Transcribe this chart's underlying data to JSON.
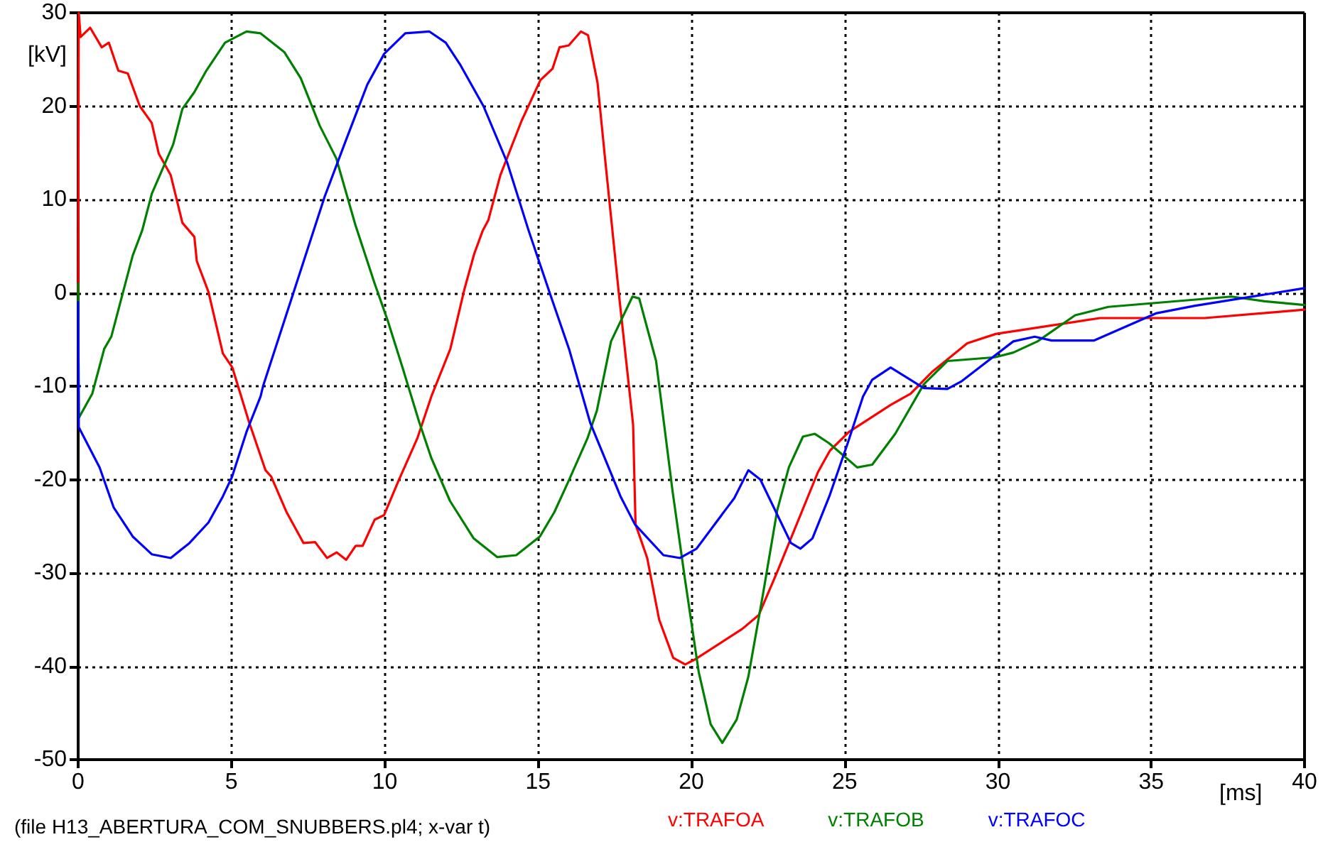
{
  "chart_data": {
    "type": "line",
    "xlabel": "[ms]",
    "ylabel": "[kV]",
    "xlim": [
      0,
      40
    ],
    "xticks": [
      0,
      5,
      10,
      15,
      20,
      25,
      30,
      35,
      40
    ],
    "ylim": [
      -50,
      30
    ],
    "yticks": [
      -50,
      -40,
      -30,
      -20,
      -10,
      0,
      10,
      20,
      30
    ],
    "grid": true,
    "legend": "bottom",
    "marker": "none",
    "line_style": "solid",
    "annotations": [
      "(file H13_ABERTURA_COM_SNUBBERS.pl4; x-var t)"
    ],
    "series": [
      {
        "name": "v:TRAFOA",
        "color": "#ff0000",
        "x": [
          0,
          0.02,
          0.08,
          0.39,
          0.77,
          1.0,
          1.31,
          1.62,
          2.01,
          2.4,
          2.63,
          3.02,
          3.4,
          3.79,
          3.87,
          4.25,
          4.72,
          5.03,
          5.57,
          6.11,
          6.3,
          6.8,
          7.35,
          7.73,
          8.12,
          8.43,
          8.74,
          9.05,
          9.28,
          9.67,
          9.98,
          10.44,
          11.06,
          11.52,
          12.14,
          12.6,
          12.92,
          13.2,
          13.38,
          13.77,
          14.46,
          15.08,
          15.47,
          15.7,
          16.0,
          16.4,
          16.63,
          16.94,
          17.17,
          17.63,
          18.1,
          18.18,
          18.56,
          18.95,
          19.41,
          19.8,
          20.1,
          21.66,
          22.2,
          22.8,
          24.13,
          24.52,
          25.14,
          26.5,
          27.15,
          27.84,
          29.0,
          29.93,
          33.33,
          36.74,
          40
        ],
        "values": [
          0,
          30,
          27.4,
          28.4,
          26.3,
          26.8,
          23.8,
          23.5,
          20,
          18.2,
          14.9,
          12.6,
          7.5,
          6,
          3.4,
          0.1,
          -6.5,
          -8,
          -13.8,
          -19,
          -19.7,
          -23.5,
          -26.8,
          -26.7,
          -28.4,
          -27.8,
          -28.6,
          -27.1,
          -27.1,
          -24.3,
          -23.8,
          -20.2,
          -15.6,
          -11.1,
          -6,
          0.4,
          4.2,
          6.7,
          7.8,
          12.6,
          18.4,
          22.8,
          24,
          26.3,
          26.5,
          28,
          27.6,
          22.5,
          14.9,
          0.1,
          -14.1,
          -24.8,
          -28.4,
          -35,
          -39.1,
          -39.8,
          -39.3,
          -36,
          -34.5,
          -29.9,
          -19.2,
          -16.9,
          -14.9,
          -12,
          -10.8,
          -8.5,
          -5.4,
          -4.4,
          -2.7,
          -2.7,
          -1.8
        ]
      },
      {
        "name": "v:TRAFOB",
        "color": "#008000",
        "x": [
          0,
          0.02,
          0.46,
          0.85,
          1.08,
          1.78,
          2.09,
          2.4,
          3.1,
          3.4,
          3.79,
          4.18,
          4.79,
          5.49,
          5.95,
          6.72,
          7.26,
          7.88,
          8.42,
          9.04,
          9.66,
          10.1,
          10.58,
          11.12,
          11.52,
          12.13,
          12.9,
          13.67,
          14.29,
          15.06,
          15.53,
          15.99,
          16.61,
          16.92,
          17.38,
          18.08,
          18.3,
          18.85,
          19.39,
          19.78,
          20.24,
          20.63,
          21.01,
          21.48,
          21.86,
          22.33,
          22.8,
          23.18,
          23.64,
          24.03,
          24.49,
          24.95,
          25.41,
          25.9,
          26.65,
          27.58,
          28.35,
          29.9,
          30.5,
          31.29,
          32.52,
          33.6,
          37.62,
          38.7,
          40
        ],
        "values": [
          1,
          -13.4,
          -10.8,
          -6,
          -4.7,
          4,
          6.7,
          10.6,
          15.9,
          19.7,
          21.5,
          23.8,
          26.8,
          28,
          27.8,
          25.8,
          23,
          17.9,
          14.4,
          7.3,
          1.1,
          -3,
          -8,
          -13.8,
          -17.7,
          -22.3,
          -26.3,
          -28.3,
          -28.1,
          -26.1,
          -23.5,
          -20.2,
          -15.6,
          -12.6,
          -5.2,
          -0.4,
          -0.6,
          -7.3,
          -21.3,
          -30.4,
          -40.6,
          -46.2,
          -48.2,
          -45.7,
          -41.1,
          -32.4,
          -23.3,
          -18.7,
          -15.4,
          -15.1,
          -16.1,
          -17.4,
          -18.7,
          -18.4,
          -15.1,
          -9.8,
          -7.3,
          -6.9,
          -6.4,
          -5.2,
          -2.4,
          -1.5,
          -0.4,
          -0.9,
          -1.3
        ]
      },
      {
        "name": "v:TRAFOC",
        "color": "#0000ff",
        "x": [
          0,
          0.02,
          0.7,
          1.16,
          1.78,
          2.4,
          3.02,
          3.63,
          4.25,
          4.72,
          5.02,
          5.49,
          5.95,
          6.03,
          7.03,
          8.04,
          8.74,
          9.43,
          9.98,
          10.67,
          11.45,
          11.99,
          12.45,
          13.22,
          14.0,
          14.69,
          15.39,
          16.01,
          16.7,
          17.69,
          18.16,
          19.09,
          19.63,
          20.17,
          21.1,
          21.4,
          21.86,
          22.25,
          23.25,
          23.56,
          23.95,
          24.5,
          25.1,
          25.6,
          25.9,
          26.5,
          27.58,
          28.35,
          28.8,
          30.5,
          31.2,
          31.75,
          33.14,
          35.15,
          36.4,
          40
        ],
        "values": [
          -1,
          -14.4,
          -18.7,
          -23,
          -26.1,
          -28,
          -28.4,
          -26.8,
          -24.6,
          -21.8,
          -19.7,
          -14.9,
          -11.1,
          -10,
          0.1,
          10.3,
          16.4,
          22.3,
          25.6,
          27.8,
          28,
          26.8,
          24.5,
          20,
          13.9,
          6.7,
          -0.1,
          -6,
          -13.9,
          -21.8,
          -24.8,
          -28.1,
          -28.4,
          -27.4,
          -23.3,
          -22,
          -19,
          -20,
          -26.8,
          -27.4,
          -26.3,
          -21.8,
          -16.1,
          -11.1,
          -9.3,
          -8,
          -10.2,
          -10.3,
          -9.5,
          -5.2,
          -4.7,
          -5.1,
          -5.1,
          -2.2,
          -1.4,
          0.5
        ]
      }
    ]
  }
}
